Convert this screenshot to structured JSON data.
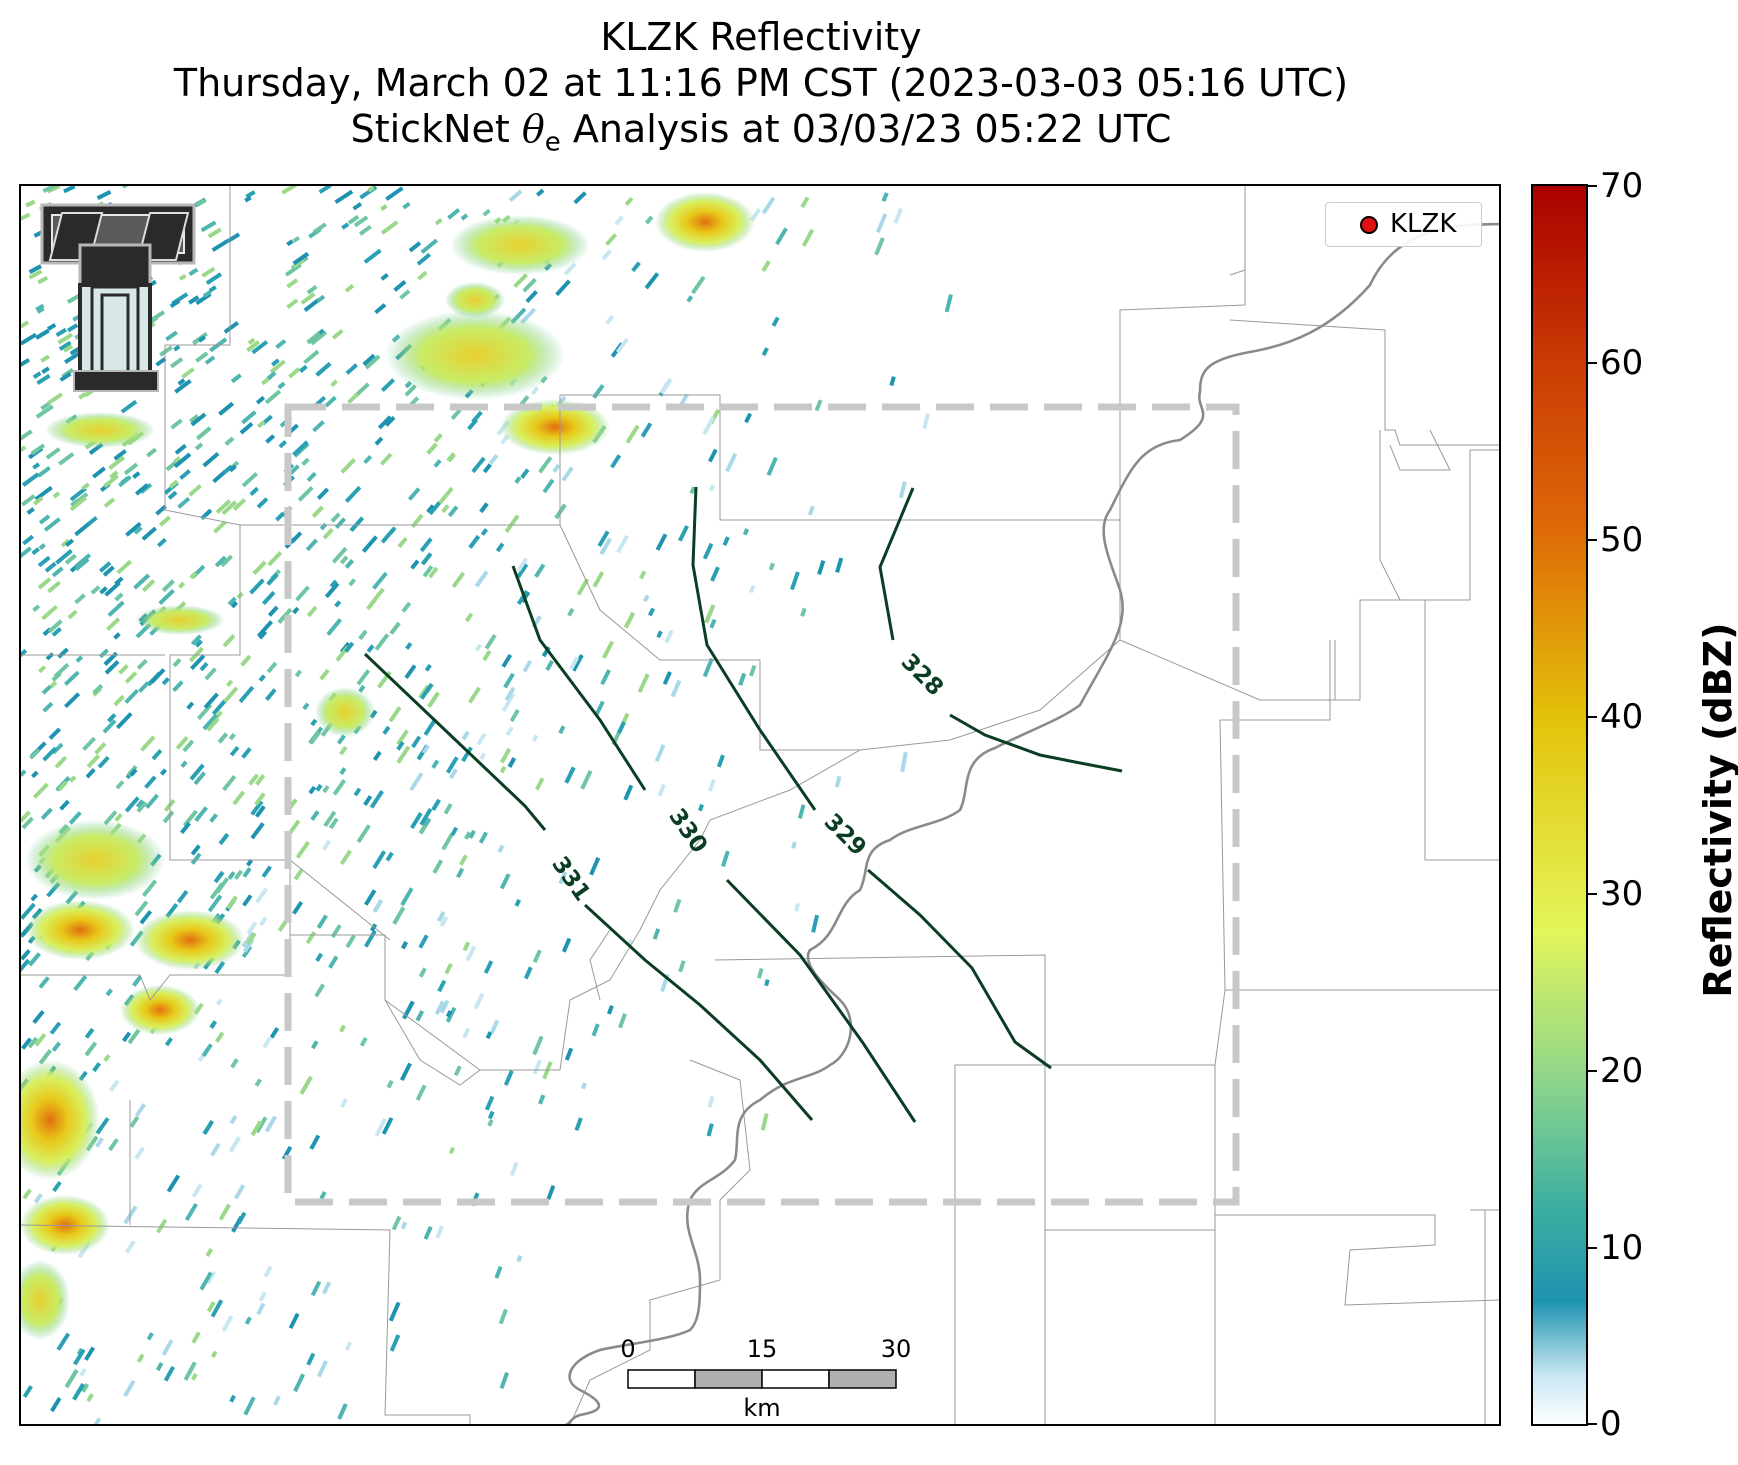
{
  "title": {
    "line1": "KLZK Reflectivity",
    "line2": "Thursday, March 02 at 11:16 PM CST (2023-03-03 05:16 UTC)",
    "line3_prefix": "StickNet ",
    "line3_symbol": "θ",
    "line3_sub": "e",
    "line3_suffix": " Analysis at 03/03/23 05:22 UTC"
  },
  "legend": {
    "label": "KLZK",
    "marker_color": "#e01010"
  },
  "colorbar": {
    "title": "Reflectivity (dBZ)",
    "ticks": [
      "70",
      "60",
      "50",
      "40",
      "30",
      "20",
      "10",
      "0"
    ],
    "range": [
      0,
      70
    ],
    "colors": [
      "#ffffff",
      "#1e93b0",
      "#3fb0a0",
      "#8fd68a",
      "#e3f55a",
      "#e3c20a",
      "#de6a08",
      "#aa0000"
    ]
  },
  "scale_bar": {
    "ticks": [
      "0",
      "15",
      "30"
    ],
    "unit": "km"
  },
  "contours": [
    {
      "label": "331"
    },
    {
      "label": "330"
    },
    {
      "label": "329"
    },
    {
      "label": "328"
    }
  ],
  "logo": {
    "icon": "texas-tech-double-t-icon"
  }
}
